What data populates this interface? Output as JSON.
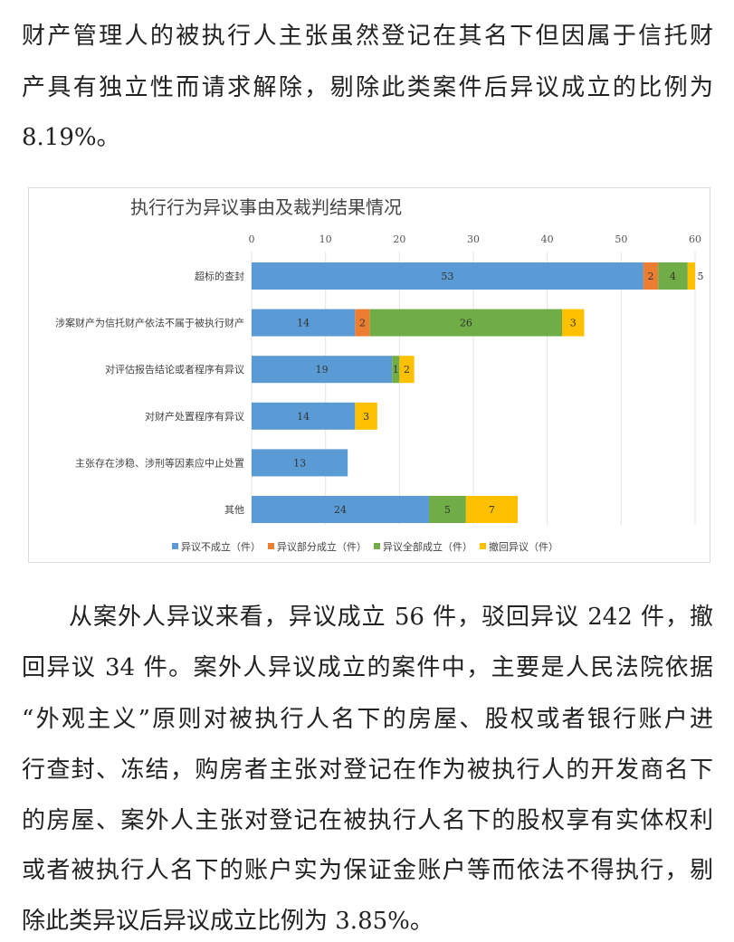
{
  "paragraph1": {
    "lines": [
      "财产管理人的被执行人主张虽然登记在其名下但因属于信托财",
      "产具有独立性而请求解除，剔除此类案件后异议成立的比例为",
      "8.19%。"
    ]
  },
  "paragraph2": {
    "lines": [
      "从案外人异议来看，异议成立 56 件，驳回异议 242 件，撤",
      "回异议 34 件。案外人异议成立的案件中，主要是人民法院依据",
      "“外观主义”原则对被执行人名下的房屋、股权或者银行账户进",
      "行查封、冻结，购房者主张对登记在作为被执行人的开发商名下",
      "的房屋、案外人主张对登记在被执行人名下的股权享有实体权利",
      "或者被执行人名下的账户实为保证金账户等而依法不得执行，剔",
      "除此类异议后异议成立比例为 3.85%。"
    ]
  },
  "chart_data": {
    "type": "bar",
    "orientation": "horizontal",
    "stacked": true,
    "title": "执行行为异议事由及裁判结果情况",
    "categories": [
      "超标的查封",
      "涉案财产为信托财产依法不属于被执行财产",
      "对评估报告结论或者程序有异议",
      "对财产处置程序有异议",
      "主张存在涉稳、涉刑等因素应中止处置",
      "其他"
    ],
    "series": [
      {
        "name": "异议不成立（件）",
        "color": "#5b9bd5",
        "values": [
          53,
          14,
          19,
          14,
          13,
          24
        ]
      },
      {
        "name": "异议部分成立（件）",
        "color": "#ed7d31",
        "values": [
          2,
          2,
          0,
          0,
          0,
          0
        ]
      },
      {
        "name": "异议全部成立（件）",
        "color": "#70ad47",
        "values": [
          4,
          26,
          1,
          0,
          0,
          5
        ]
      },
      {
        "name": "撤回异议（件）",
        "color": "#ffc000",
        "values": [
          5,
          3,
          2,
          3,
          0,
          7
        ]
      }
    ],
    "xlim": [
      0,
      60
    ],
    "xticks": [
      0,
      10,
      20,
      30,
      40,
      50,
      60
    ],
    "axis_position": "top",
    "grid": true,
    "legend": "bottom"
  }
}
